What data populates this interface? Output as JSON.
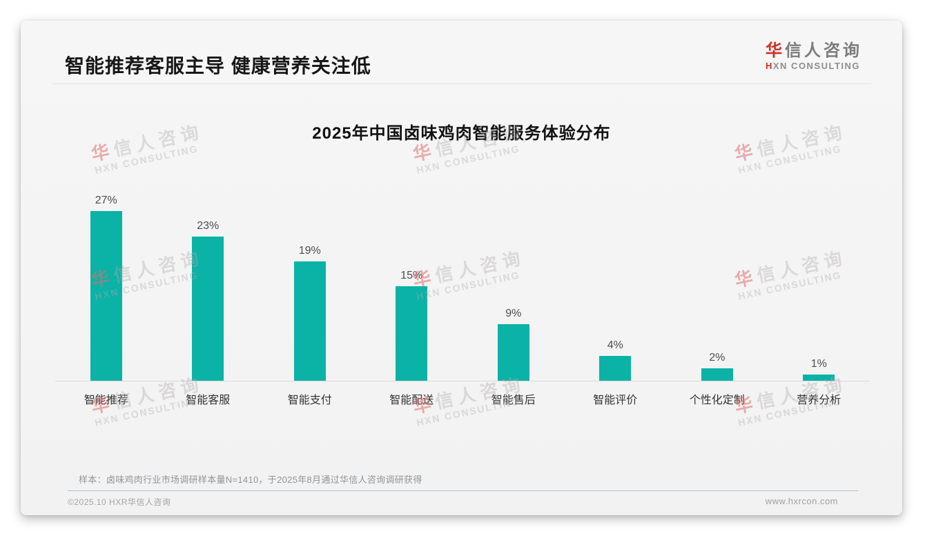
{
  "header": {
    "title": "智能推荐客服主导 健康营养关注低",
    "logo": {
      "cn_first": "华",
      "cn_rest": "信人咨询",
      "en_first": "H",
      "en_rest": "XN CONSULTING"
    }
  },
  "chart_data": {
    "type": "bar",
    "title": "2025年中国卤味鸡肉智能服务体验分布",
    "categories": [
      "智能推荐",
      "智能客服",
      "智能支付",
      "智能配送",
      "智能售后",
      "智能评价",
      "个性化定制",
      "营养分析"
    ],
    "values": [
      27,
      23,
      19,
      15,
      9,
      4,
      2,
      1
    ],
    "unit": "%",
    "value_labels": [
      "27%",
      "23%",
      "19%",
      "15%",
      "9%",
      "4%",
      "2%",
      "1%"
    ],
    "bar_color": "#0bb2a6",
    "xlabel": "",
    "ylabel": "",
    "ylim": [
      0,
      30
    ],
    "grid": false,
    "legend": false,
    "value_labels_position": "above-bars"
  },
  "watermark": {
    "cn_first": "华",
    "cn_rest": "信人咨询",
    "en": "HXN CONSULTING"
  },
  "note": "样本：卤味鸡肉行业市场调研样本量N=1410，于2025年8月通过华信人咨询调研获得",
  "footer": {
    "left": "©2025.10 HXR华信人咨询",
    "right": "www.hxrcon.com"
  },
  "colors": {
    "bar": "#0bb2a6",
    "brand_red": "#cf2f26",
    "card_bg": "#f4f4f4",
    "title_text": "#171717",
    "note_text": "#8f959b"
  }
}
